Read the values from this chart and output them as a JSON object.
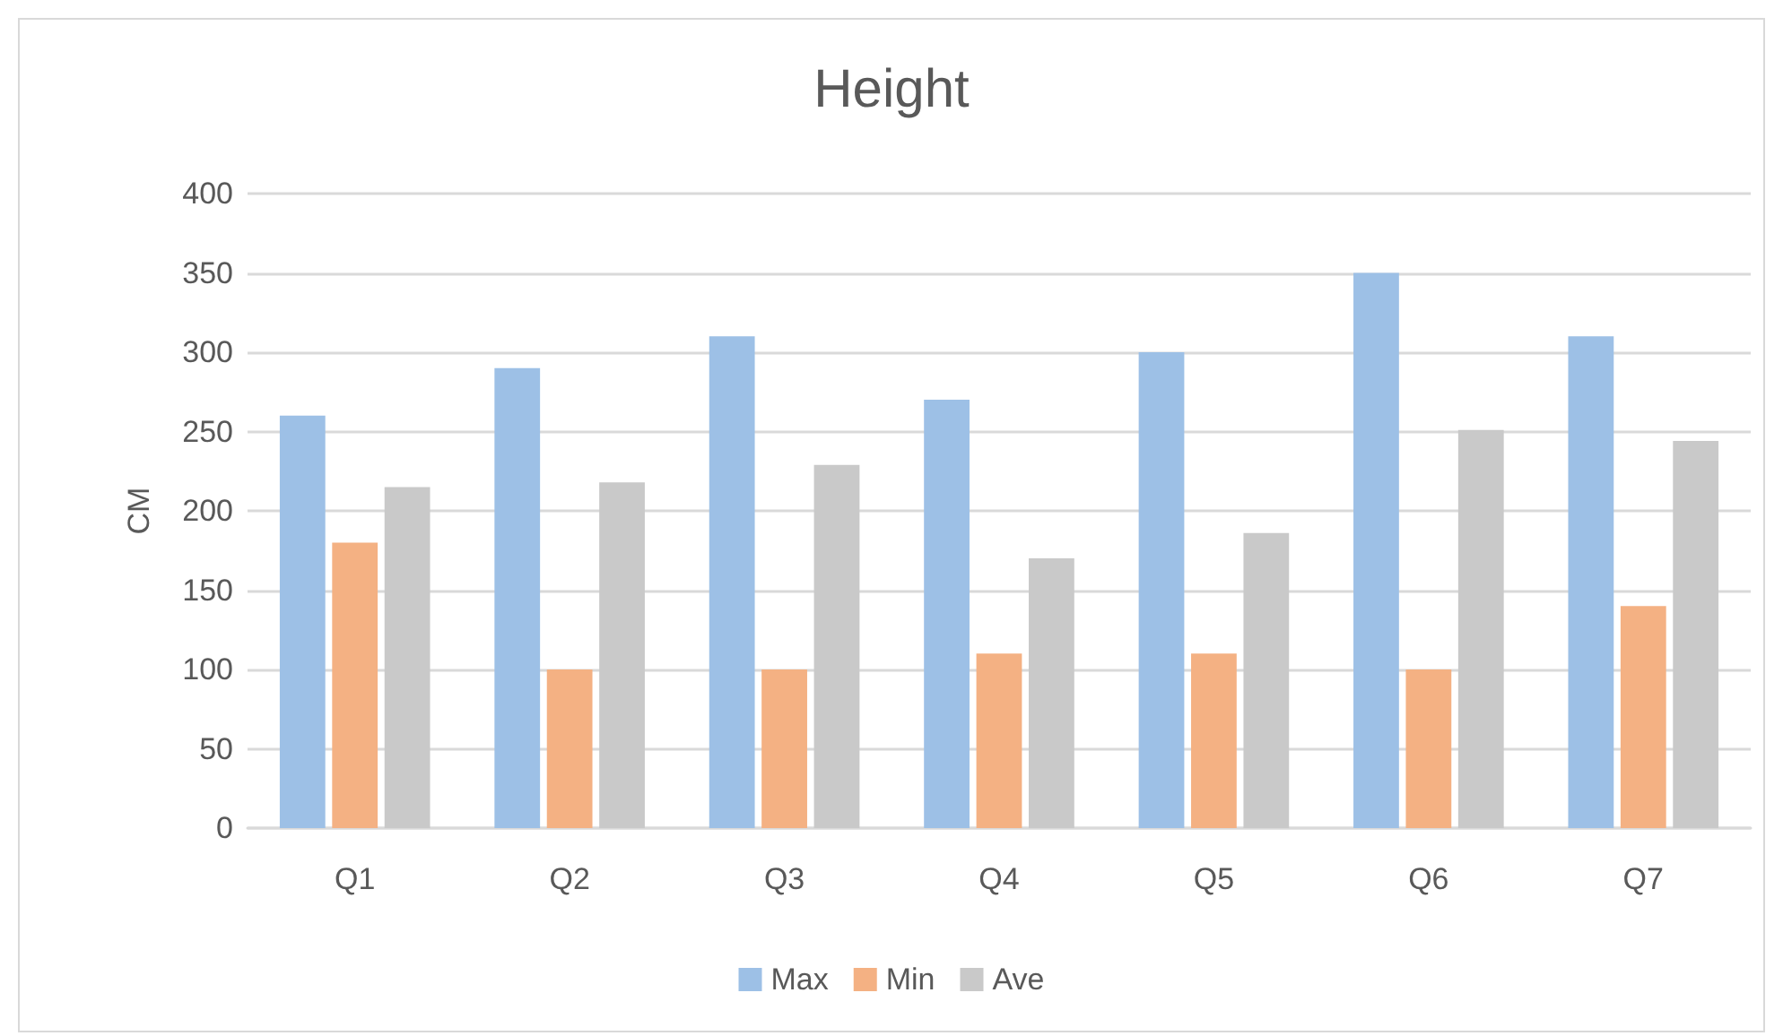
{
  "chart_data": {
    "type": "bar",
    "title": "Height",
    "ylabel": "CM",
    "categories": [
      "Q1",
      "Q2",
      "Q3",
      "Q4",
      "Q5",
      "Q6",
      "Q7"
    ],
    "series": [
      {
        "name": "Max",
        "color": "#9dc0e6",
        "values": [
          260,
          290,
          310,
          270,
          300,
          350,
          310
        ]
      },
      {
        "name": "Min",
        "color": "#f4b183",
        "values": [
          180,
          100,
          100,
          110,
          110,
          100,
          140
        ]
      },
      {
        "name": "Ave",
        "color": "#c9c9c9",
        "values": [
          215,
          218,
          229,
          170,
          186,
          251,
          244
        ]
      }
    ],
    "ylim": [
      0,
      400
    ],
    "yticks": [
      0,
      50,
      100,
      150,
      200,
      250,
      300,
      350,
      400
    ],
    "grid": "y",
    "legend": "bottom"
  }
}
